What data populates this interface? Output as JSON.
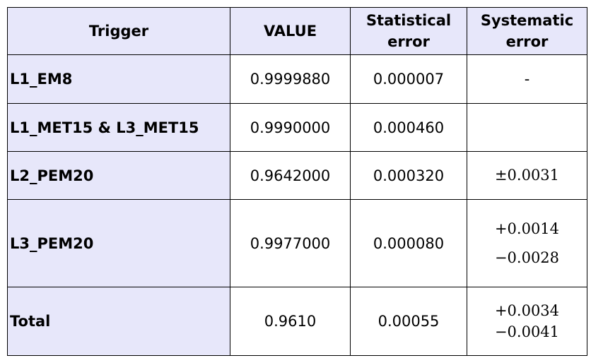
{
  "table": {
    "headers": {
      "trigger": "Trigger",
      "value": "VALUE",
      "stat": "Statistical error",
      "sys": "Systematic error"
    },
    "rows": [
      {
        "trigger": "L1_EM8",
        "value": "0.9999880",
        "stat": "0.000007",
        "sys": [
          "-"
        ]
      },
      {
        "trigger": "L1_MET15 & L3_MET15",
        "value": "0.9990000",
        "stat": "0.000460",
        "sys": []
      },
      {
        "trigger": "L2_PEM20",
        "value": "0.9642000",
        "stat": "0.000320",
        "sys": [
          "±0.0031"
        ]
      },
      {
        "trigger": "L3_PEM20",
        "value": "0.9977000",
        "stat": "0.000080",
        "sys": [
          "+0.0014",
          "−0.0028"
        ]
      },
      {
        "trigger": "Total",
        "value": "0.9610",
        "stat": "0.00055",
        "sys": [
          "+0.0034",
          "−0.0041"
        ]
      }
    ]
  }
}
